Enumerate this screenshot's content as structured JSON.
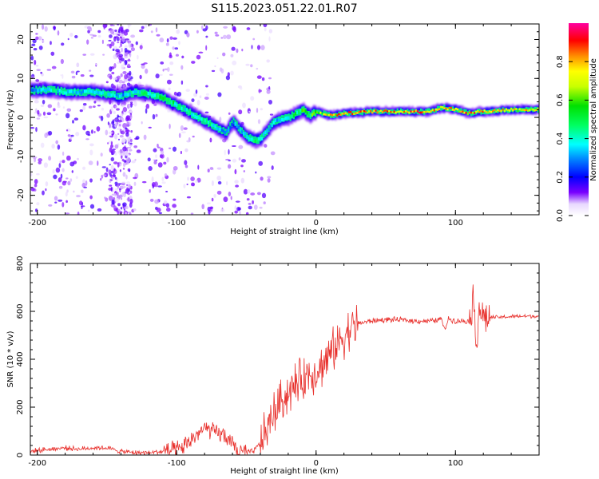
{
  "title": "S115.2023.051.22.01.R07",
  "colors": {
    "snr_line": "#e8302c",
    "ridge_low": "#2e00ff",
    "ridge_mid": "#00e060",
    "ridge_high": "#ff1030",
    "background_noise": "#b58cff"
  },
  "colorbar": {
    "label": "Normalized spectral amplitude",
    "range": [
      0.0,
      1.0
    ],
    "ticks": [
      0.0,
      0.2,
      0.4,
      0.6,
      0.8
    ],
    "tick_labels": [
      "0.0",
      "0.2",
      "0.4",
      "0.6",
      "0.8"
    ],
    "colormap": "gist_ncar-like (white, purple, blue, cyan, green, yellow, orange, red, magenta)"
  },
  "chart_data": [
    {
      "type": "heatmap",
      "xlabel": "Height of straight line (km)",
      "ylabel": "Frequency (Hz)",
      "xlim": [
        -205,
        160
      ],
      "ylim": [
        -25,
        24
      ],
      "xticks": [
        -200,
        -100,
        0,
        100
      ],
      "xtick_labels": [
        "-200",
        "-100",
        "0",
        "100"
      ],
      "yticks": [
        -20,
        -10,
        0,
        10,
        20
      ],
      "ytick_labels": [
        "-20",
        "-10",
        "0",
        "10",
        "20"
      ],
      "grid": false,
      "ridge": {
        "x": [
          -205,
          -190,
          -180,
          -170,
          -160,
          -150,
          -140,
          -130,
          -120,
          -110,
          -100,
          -95,
          -90,
          -85,
          -80,
          -75,
          -70,
          -65,
          -60,
          -55,
          -50,
          -45,
          -40,
          -35,
          -30,
          -25,
          -20,
          -15,
          -10,
          -5,
          0,
          5,
          10,
          20,
          40,
          60,
          80,
          90,
          100,
          110,
          115,
          120,
          140,
          160
        ],
        "y": [
          7,
          7,
          6.5,
          6.5,
          6.5,
          6,
          5.5,
          6.5,
          6,
          5,
          3,
          2,
          1,
          0,
          -1,
          -2,
          -3,
          -4,
          -1,
          -3,
          -5,
          -6,
          -5.5,
          -3,
          -1,
          -0.5,
          0,
          1,
          2,
          0.5,
          1.5,
          1,
          0.5,
          1,
          1.5,
          1.5,
          1.5,
          2.5,
          2,
          1,
          1.5,
          1.5,
          2,
          2
        ],
        "amplitude": [
          0.3,
          0.45,
          0.4,
          0.4,
          0.4,
          0.45,
          0.35,
          0.45,
          0.5,
          0.55,
          0.5,
          0.45,
          0.45,
          0.5,
          0.5,
          0.45,
          0.4,
          0.35,
          0.35,
          0.4,
          0.4,
          0.5,
          0.5,
          0.4,
          0.35,
          0.4,
          0.5,
          0.55,
          0.6,
          0.6,
          0.7,
          0.75,
          0.85,
          0.9,
          0.92,
          0.93,
          0.9,
          0.95,
          0.9,
          0.9,
          0.9,
          0.9,
          0.85,
          0.8
        ]
      }
    },
    {
      "type": "line",
      "xlabel": "Height of straight line (km)",
      "ylabel": "SNR (10 * v/v)",
      "xlim": [
        -205,
        160
      ],
      "ylim": [
        0,
        800
      ],
      "xticks": [
        -200,
        -100,
        0,
        100
      ],
      "xtick_labels": [
        "-200",
        "-100",
        "0",
        "100"
      ],
      "yticks": [
        0,
        200,
        400,
        600,
        800
      ],
      "ytick_labels": [
        "0",
        "200",
        "400",
        "600",
        "800"
      ],
      "grid": false,
      "series": [
        {
          "x": [
            -205,
            -200,
            -190,
            -180,
            -170,
            -160,
            -150,
            -140,
            -130,
            -120,
            -110,
            -100,
            -95,
            -90,
            -85,
            -80,
            -75,
            -70,
            -65,
            -60,
            -55,
            -50,
            -45,
            -40,
            -35,
            -30,
            -25,
            -20,
            -15,
            -10,
            -5,
            0,
            5,
            10,
            15,
            20,
            25,
            30,
            35,
            40,
            50,
            60,
            70,
            80,
            85,
            90,
            92,
            95,
            100,
            105,
            110,
            113,
            115,
            117,
            118,
            120,
            125,
            130,
            140,
            150,
            160
          ],
          "y": [
            15,
            20,
            25,
            30,
            25,
            30,
            30,
            15,
            10,
            10,
            15,
            20,
            35,
            60,
            90,
            110,
            100,
            90,
            80,
            40,
            15,
            10,
            15,
            50,
            110,
            180,
            230,
            260,
            290,
            320,
            340,
            350,
            380,
            420,
            460,
            500,
            530,
            550,
            555,
            560,
            565,
            565,
            560,
            560,
            560,
            570,
            520,
            570,
            560,
            560,
            560,
            650,
            470,
            620,
            600,
            575,
            575,
            575,
            578,
            580,
            580
          ]
        }
      ]
    }
  ]
}
